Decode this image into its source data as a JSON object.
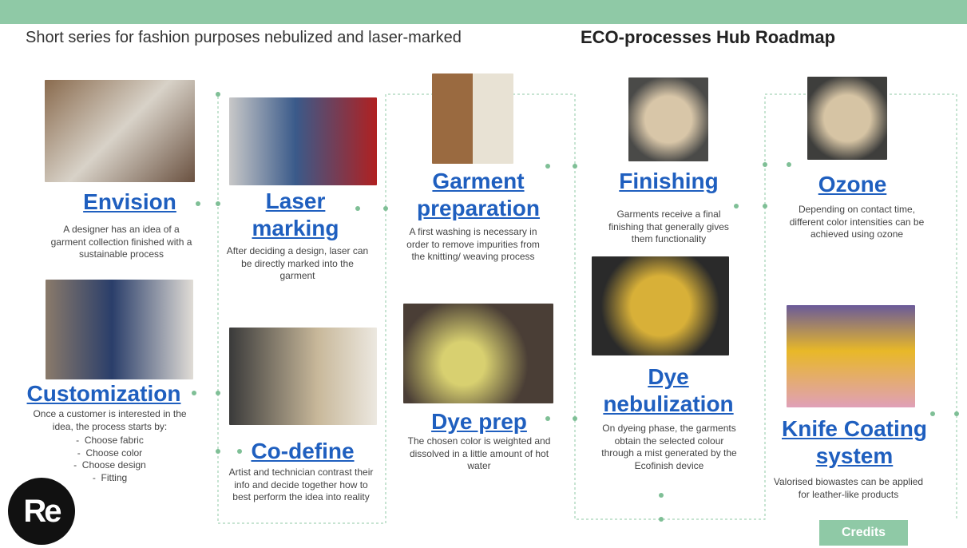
{
  "header": {
    "subtitle": "Short series for fashion purposes nebulized and laser-marked",
    "title": "ECO-processes Hub Roadmap"
  },
  "steps": [
    {
      "title": "Envision",
      "text": "A designer has an idea of a garment collection finished with a sustainable process"
    },
    {
      "title": "Laser marking",
      "text": "After deciding a design, laser can be directly marked into the garment"
    },
    {
      "title": "Garment preparation",
      "text": "A first washing is necessary in order to remove impurities from the knitting/ weaving process"
    },
    {
      "title": "Finishing",
      "text": "Garments receive a final finishing that generally gives them functionality"
    },
    {
      "title": "Ozone",
      "text": "Depending on contact time, different color intensities can be achieved using ozone"
    },
    {
      "title": "Customization",
      "text": "Once a customer is interested in the idea, the process starts by:",
      "items": [
        "Choose fabric",
        "Choose color",
        "Choose design",
        "Fitting"
      ]
    },
    {
      "title": "Co-define",
      "text": "Artist and technician contrast their info and decide together how to best perform the idea into reality"
    },
    {
      "title": "Dye prep",
      "text": "The chosen color is weighted and dissolved in a little amount of hot water"
    },
    {
      "title": "Dye nebulization",
      "text": "On dyeing phase, the garments obtain the selected colour through a mist generated by the Ecofinish device"
    },
    {
      "title": "Knife Coating system",
      "text": "Valorised biowastes can be applied for leather-like products"
    }
  ],
  "logo": "Re",
  "button": "Credits"
}
